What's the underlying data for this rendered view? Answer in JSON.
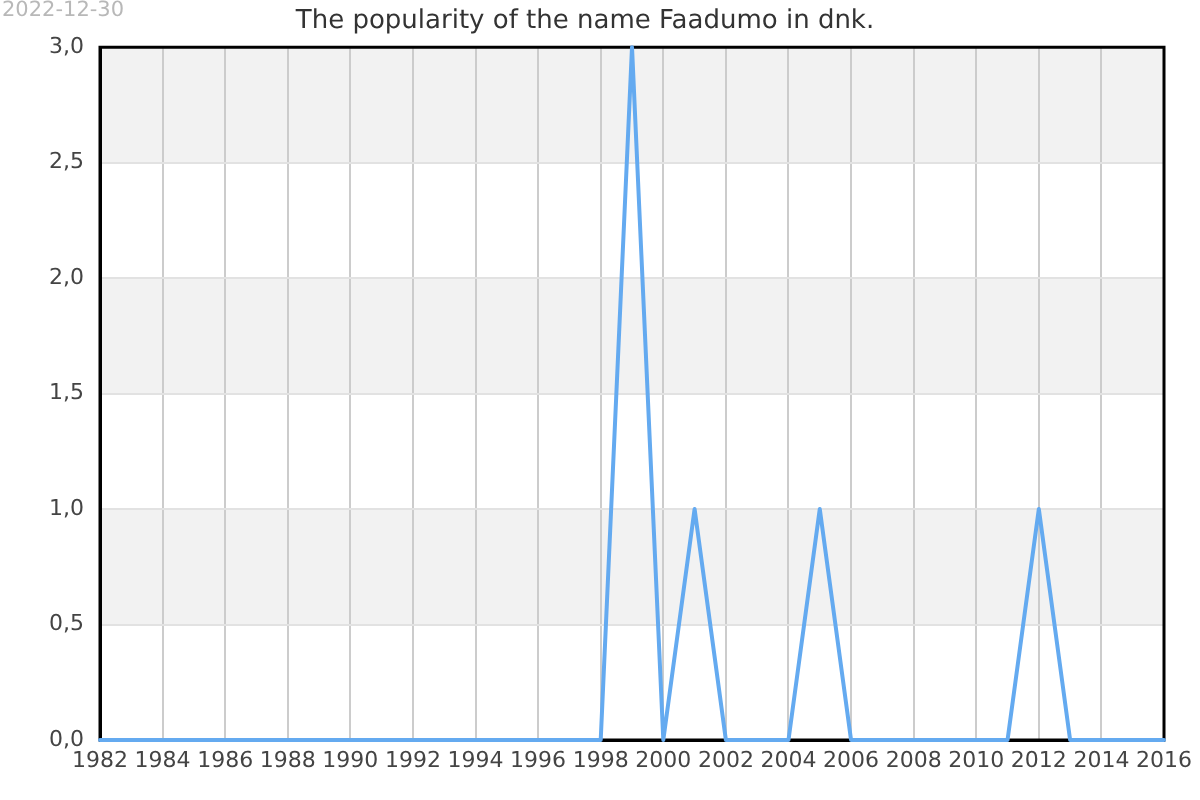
{
  "chart_data": {
    "type": "line",
    "title": "The popularity of the name Faadumo in dnk.",
    "annotations": [
      "2022-12-30"
    ],
    "x": [
      1982,
      1983,
      1984,
      1985,
      1986,
      1987,
      1988,
      1989,
      1990,
      1991,
      1992,
      1993,
      1994,
      1995,
      1996,
      1997,
      1998,
      1999,
      2000,
      2001,
      2002,
      2003,
      2004,
      2005,
      2006,
      2007,
      2008,
      2009,
      2010,
      2011,
      2012,
      2013,
      2014,
      2015,
      2016
    ],
    "series": [
      {
        "color": "#64aaf0",
        "values": [
          0,
          0,
          0,
          0,
          0,
          0,
          0,
          0,
          0,
          0,
          0,
          0,
          0,
          0,
          0,
          0,
          0,
          3,
          0,
          1,
          0,
          0,
          0,
          1,
          0,
          0,
          0,
          0,
          0,
          0,
          1,
          0,
          0,
          0,
          0
        ]
      }
    ],
    "xlim": [
      1982,
      2016
    ],
    "xticks": [
      1982,
      1984,
      1986,
      1988,
      1990,
      1992,
      1994,
      1996,
      1998,
      2000,
      2002,
      2004,
      2006,
      2008,
      2010,
      2012,
      2014,
      2016
    ],
    "ylim": [
      0,
      3
    ],
    "yticks": [
      {
        "value": 0,
        "label": "0,0"
      },
      {
        "value": 0.5,
        "label": "0,5"
      },
      {
        "value": 1,
        "label": "1,0"
      },
      {
        "value": 1.5,
        "label": "1,5"
      },
      {
        "value": 2,
        "label": "2,0"
      },
      {
        "value": 2.5,
        "label": "2,5"
      },
      {
        "value": 3,
        "label": "3,0"
      }
    ],
    "bands": [
      {
        "axis": "y",
        "from": 0.5,
        "to": 1,
        "color": "#f2f2f2"
      },
      {
        "axis": "y",
        "from": 1.5,
        "to": 2,
        "color": "#f2f2f2"
      },
      {
        "axis": "y",
        "from": 2.5,
        "to": 3,
        "color": "#f2f2f2"
      }
    ],
    "grid": true,
    "marker": "none",
    "line_style": "solid"
  }
}
